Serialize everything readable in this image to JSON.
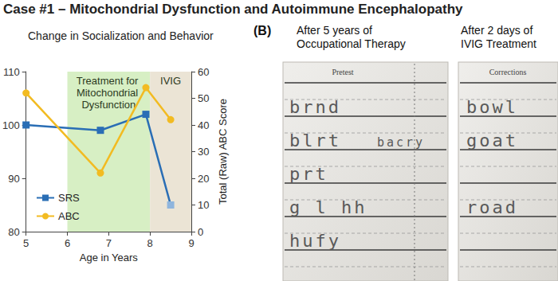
{
  "title": "Case #1 – Mitochondrial Dysfunction and Autoimmune Encephalopathy",
  "chart_data": {
    "type": "line",
    "title": "Change in Socialization and Behavior",
    "x_label": "Age in Years",
    "y2_label": "Total (Raw) ABC Score",
    "x": [
      5,
      6.8,
      7.9,
      8.5
    ],
    "xlim": [
      5,
      9
    ],
    "xticks": [
      5,
      6,
      7,
      8,
      9
    ],
    "ylim": [
      80,
      110
    ],
    "yticks": [
      80,
      90,
      100,
      110
    ],
    "y2lim": [
      0,
      60
    ],
    "y2ticks": [
      0,
      10,
      20,
      30,
      40,
      50,
      60
    ],
    "grid": false,
    "legend": "lower left",
    "series": [
      {
        "name": "SRS",
        "color": "#2a6eb5",
        "colors": [
          "#2a6eb5",
          "#2a6eb5",
          "#2a6eb5",
          "#8fb5dd"
        ],
        "marker": "square",
        "values": [
          100,
          99,
          102,
          85
        ]
      },
      {
        "name": "ABC",
        "color": "#f2bb22",
        "marker": "circle",
        "axis": "y2",
        "values": [
          52,
          22,
          54,
          42
        ]
      }
    ],
    "annotations": [
      {
        "text": "Treatment for Mitochondrial Dysfunction",
        "x_range": [
          6,
          8
        ],
        "color": "#d7efc4"
      },
      {
        "text": "IVIG",
        "x_range": [
          8,
          9
        ],
        "color": "#ebe4d5"
      }
    ]
  },
  "panel_b": {
    "label": "(B)",
    "photos": [
      {
        "caption": "After 5 years of Occupational Therapy",
        "heading": "Pretest",
        "words": [
          "brnd",
          "blrt",
          "bacry",
          "prt",
          "g l hh",
          "hufy"
        ]
      },
      {
        "caption": "After 2 days of IVIG Treatment",
        "heading": "Corrections",
        "words": [
          "bowl",
          "goat",
          "road"
        ]
      }
    ]
  }
}
